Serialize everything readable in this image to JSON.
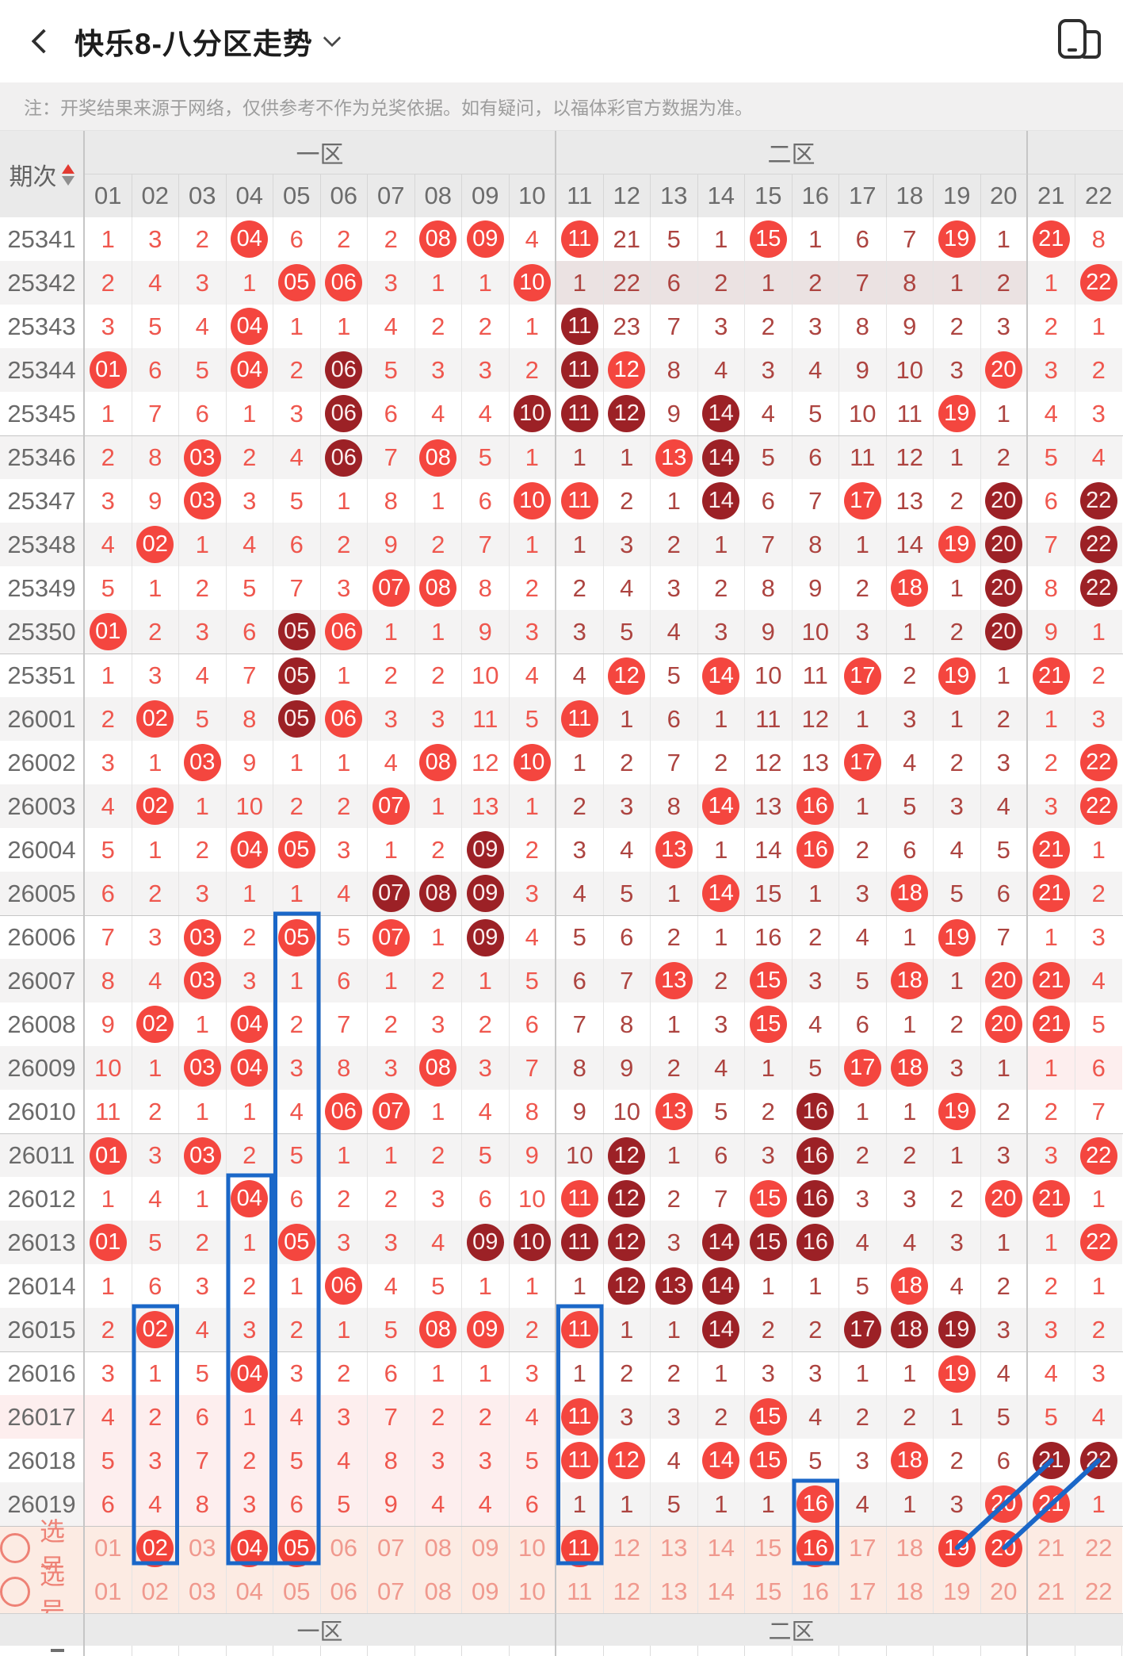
{
  "nav": {
    "title": "快乐8-八分区走势",
    "back_icon": "chevron-left-icon",
    "title_dropdown_icon": "chevron-down-icon",
    "window_switch_icon": "overlapping-windows-icon"
  },
  "disclaimer": "注：开奖结果来源于网络，仅供参考不作为兑奖依据。如有疑问，以福体彩官方数据为准。",
  "table": {
    "period_header": "期次",
    "sort_icon": "sort-asc-desc-icon",
    "zone_headers": [
      "一区",
      "二区",
      ""
    ],
    "columns": [
      "01",
      "02",
      "03",
      "04",
      "05",
      "06",
      "07",
      "08",
      "09",
      "10",
      "11",
      "12",
      "13",
      "14",
      "15",
      "16",
      "17",
      "18",
      "19",
      "20",
      "21",
      "22"
    ],
    "cell_legend": {
      "R": "hit-ball-bright-red",
      "D": "repeat-hit-ball-dark-maroon",
      "S": "selected-pick-ball",
      "plain": "omission-count"
    },
    "rows": [
      {
        "period": "25341",
        "cells": [
          "1",
          "3",
          "2",
          "R04",
          "6",
          "2",
          "2",
          "R08",
          "R09",
          "4",
          "R11",
          "21",
          "5",
          "1",
          "R15",
          "1",
          "6",
          "7",
          "R19",
          "1",
          "R21",
          "8"
        ]
      },
      {
        "period": "25342",
        "cells": [
          "2",
          "4",
          "3",
          "1",
          "R05",
          "R06",
          "3",
          "1",
          "1",
          "R10",
          "1",
          "22",
          "6",
          "2",
          "1",
          "2",
          "7",
          "8",
          "1",
          "2",
          "1",
          "R22"
        ],
        "tints": [
          {
            "from": 11,
            "to": 20,
            "type": "mauve"
          }
        ]
      },
      {
        "period": "25343",
        "cells": [
          "3",
          "5",
          "4",
          "R04",
          "1",
          "1",
          "4",
          "2",
          "2",
          "1",
          "D11",
          "23",
          "7",
          "3",
          "2",
          "3",
          "8",
          "9",
          "2",
          "3",
          "2",
          "1"
        ]
      },
      {
        "period": "25344",
        "cells": [
          "R01",
          "6",
          "5",
          "R04",
          "2",
          "D06",
          "5",
          "3",
          "3",
          "2",
          "D11",
          "R12",
          "8",
          "4",
          "3",
          "4",
          "9",
          "10",
          "3",
          "R20",
          "3",
          "2"
        ]
      },
      {
        "period": "25345",
        "cells": [
          "1",
          "7",
          "6",
          "1",
          "3",
          "D06",
          "6",
          "4",
          "4",
          "D10",
          "D11",
          "D12",
          "9",
          "D14",
          "4",
          "5",
          "10",
          "11",
          "R19",
          "1",
          "4",
          "3"
        ]
      },
      {
        "period": "25346",
        "cells": [
          "2",
          "8",
          "R03",
          "2",
          "4",
          "D06",
          "7",
          "R08",
          "5",
          "1",
          "1",
          "1",
          "R13",
          "D14",
          "5",
          "6",
          "11",
          "12",
          "1",
          "2",
          "5",
          "4"
        ],
        "sep": true
      },
      {
        "period": "25347",
        "cells": [
          "3",
          "9",
          "R03",
          "3",
          "5",
          "1",
          "8",
          "1",
          "6",
          "R10",
          "R11",
          "2",
          "1",
          "D14",
          "6",
          "7",
          "R17",
          "13",
          "2",
          "D20",
          "6",
          "D22"
        ]
      },
      {
        "period": "25348",
        "cells": [
          "4",
          "R02",
          "1",
          "4",
          "6",
          "2",
          "9",
          "2",
          "7",
          "1",
          "1",
          "3",
          "2",
          "1",
          "7",
          "8",
          "1",
          "14",
          "R19",
          "D20",
          "7",
          "D22"
        ]
      },
      {
        "period": "25349",
        "cells": [
          "5",
          "1",
          "2",
          "5",
          "7",
          "3",
          "R07",
          "R08",
          "8",
          "2",
          "2",
          "4",
          "3",
          "2",
          "8",
          "9",
          "2",
          "R18",
          "1",
          "D20",
          "8",
          "D22"
        ]
      },
      {
        "period": "25350",
        "cells": [
          "R01",
          "2",
          "3",
          "6",
          "D05",
          "R06",
          "1",
          "1",
          "9",
          "3",
          "3",
          "5",
          "4",
          "3",
          "9",
          "10",
          "3",
          "1",
          "2",
          "D20",
          "9",
          "1"
        ]
      },
      {
        "period": "25351",
        "cells": [
          "1",
          "3",
          "4",
          "7",
          "D05",
          "1",
          "2",
          "2",
          "10",
          "4",
          "4",
          "R12",
          "5",
          "R14",
          "10",
          "11",
          "R17",
          "2",
          "R19",
          "1",
          "R21",
          "2"
        ],
        "sep": true
      },
      {
        "period": "26001",
        "cells": [
          "2",
          "R02",
          "5",
          "8",
          "D05",
          "R06",
          "3",
          "3",
          "11",
          "5",
          "R11",
          "1",
          "6",
          "1",
          "11",
          "12",
          "1",
          "3",
          "1",
          "2",
          "1",
          "3"
        ]
      },
      {
        "period": "26002",
        "cells": [
          "3",
          "1",
          "R03",
          "9",
          "1",
          "1",
          "4",
          "R08",
          "12",
          "R10",
          "1",
          "2",
          "7",
          "2",
          "12",
          "13",
          "R17",
          "4",
          "2",
          "3",
          "2",
          "R22"
        ]
      },
      {
        "period": "26003",
        "cells": [
          "4",
          "R02",
          "1",
          "10",
          "2",
          "2",
          "R07",
          "1",
          "13",
          "1",
          "2",
          "3",
          "8",
          "R14",
          "13",
          "R16",
          "1",
          "5",
          "3",
          "4",
          "3",
          "R22"
        ]
      },
      {
        "period": "26004",
        "cells": [
          "5",
          "1",
          "2",
          "R04",
          "R05",
          "3",
          "1",
          "2",
          "D09",
          "2",
          "3",
          "4",
          "R13",
          "1",
          "14",
          "R16",
          "2",
          "6",
          "4",
          "5",
          "R21",
          "1"
        ]
      },
      {
        "period": "26005",
        "cells": [
          "6",
          "2",
          "3",
          "1",
          "1",
          "4",
          "D07",
          "D08",
          "D09",
          "3",
          "4",
          "5",
          "1",
          "R14",
          "15",
          "1",
          "3",
          "R18",
          "5",
          "6",
          "R21",
          "2"
        ]
      },
      {
        "period": "26006",
        "cells": [
          "7",
          "3",
          "R03",
          "2",
          "R05",
          "5",
          "R07",
          "1",
          "D09",
          "4",
          "5",
          "6",
          "2",
          "1",
          "16",
          "2",
          "4",
          "1",
          "R19",
          "7",
          "1",
          "3"
        ],
        "sep": true
      },
      {
        "period": "26007",
        "cells": [
          "8",
          "4",
          "R03",
          "3",
          "1",
          "6",
          "1",
          "2",
          "1",
          "5",
          "6",
          "7",
          "R13",
          "2",
          "R15",
          "3",
          "5",
          "R18",
          "1",
          "R20",
          "R21",
          "4"
        ]
      },
      {
        "period": "26008",
        "cells": [
          "9",
          "R02",
          "1",
          "R04",
          "2",
          "7",
          "2",
          "3",
          "2",
          "6",
          "7",
          "8",
          "1",
          "3",
          "R15",
          "4",
          "6",
          "1",
          "2",
          "R20",
          "R21",
          "5"
        ]
      },
      {
        "period": "26009",
        "cells": [
          "10",
          "1",
          "R03",
          "R04",
          "3",
          "8",
          "3",
          "R08",
          "3",
          "7",
          "8",
          "9",
          "2",
          "4",
          "1",
          "5",
          "R17",
          "R18",
          "3",
          "1",
          "1",
          "6"
        ],
        "tints": [
          {
            "from": 21,
            "to": 22,
            "type": "pink"
          }
        ]
      },
      {
        "period": "26010",
        "cells": [
          "11",
          "2",
          "1",
          "1",
          "4",
          "R06",
          "R07",
          "1",
          "4",
          "8",
          "9",
          "10",
          "R13",
          "5",
          "2",
          "D16",
          "1",
          "1",
          "R19",
          "2",
          "2",
          "7"
        ]
      },
      {
        "period": "26011",
        "cells": [
          "R01",
          "3",
          "R03",
          "2",
          "5",
          "1",
          "1",
          "2",
          "5",
          "9",
          "10",
          "D12",
          "1",
          "6",
          "3",
          "D16",
          "2",
          "2",
          "1",
          "3",
          "3",
          "R22"
        ],
        "sep": true
      },
      {
        "period": "26012",
        "cells": [
          "1",
          "4",
          "1",
          "R04",
          "6",
          "2",
          "2",
          "3",
          "6",
          "10",
          "R11",
          "D12",
          "2",
          "7",
          "R15",
          "D16",
          "3",
          "3",
          "2",
          "R20",
          "R21",
          "1"
        ]
      },
      {
        "period": "26013",
        "cells": [
          "R01",
          "5",
          "2",
          "1",
          "R05",
          "3",
          "3",
          "4",
          "D09",
          "D10",
          "D11",
          "D12",
          "3",
          "D14",
          "D15",
          "D16",
          "4",
          "4",
          "3",
          "1",
          "1",
          "R22"
        ]
      },
      {
        "period": "26014",
        "cells": [
          "1",
          "6",
          "3",
          "2",
          "1",
          "R06",
          "4",
          "5",
          "1",
          "1",
          "1",
          "D12",
          "D13",
          "D14",
          "1",
          "1",
          "5",
          "R18",
          "4",
          "2",
          "2",
          "1"
        ]
      },
      {
        "period": "26015",
        "cells": [
          "2",
          "R02",
          "4",
          "3",
          "2",
          "1",
          "5",
          "R08",
          "R09",
          "2",
          "R11",
          "1",
          "1",
          "D14",
          "2",
          "2",
          "D17",
          "D18",
          "D19",
          "3",
          "3",
          "2"
        ]
      },
      {
        "period": "26016",
        "cells": [
          "3",
          "1",
          "5",
          "R04",
          "3",
          "2",
          "6",
          "1",
          "1",
          "3",
          "1",
          "2",
          "2",
          "1",
          "3",
          "3",
          "1",
          "1",
          "R19",
          "4",
          "4",
          "3"
        ],
        "sep": true
      },
      {
        "period": "26017",
        "cells": [
          "4",
          "2",
          "6",
          "1",
          "4",
          "3",
          "7",
          "2",
          "2",
          "4",
          "R11",
          "3",
          "3",
          "2",
          "R15",
          "4",
          "2",
          "2",
          "1",
          "5",
          "5",
          "4"
        ],
        "tints": [
          {
            "from": 0,
            "to": 10,
            "type": "pink"
          }
        ]
      },
      {
        "period": "26018",
        "cells": [
          "5",
          "3",
          "7",
          "2",
          "5",
          "4",
          "8",
          "3",
          "3",
          "5",
          "R11",
          "R12",
          "4",
          "R14",
          "R15",
          "5",
          "3",
          "R18",
          "2",
          "6",
          "D21",
          "D22"
        ],
        "tints": [
          {
            "from": 1,
            "to": 10,
            "type": "pink"
          }
        ]
      },
      {
        "period": "26019",
        "cells": [
          "6",
          "4",
          "8",
          "3",
          "6",
          "5",
          "9",
          "4",
          "4",
          "6",
          "1",
          "1",
          "5",
          "1",
          "1",
          "R16",
          "4",
          "1",
          "3",
          "R20",
          "R21",
          "1"
        ],
        "tints": [
          {
            "from": 1,
            "to": 10,
            "type": "pink"
          }
        ]
      }
    ],
    "select_rows": [
      {
        "id": "select-1",
        "label": "选号",
        "cells": [
          "01",
          "S02",
          "03",
          "S04",
          "S05",
          "06",
          "07",
          "08",
          "09",
          "10",
          "S11",
          "12",
          "13",
          "14",
          "15",
          "S16",
          "17",
          "18",
          "S19",
          "S20",
          "21",
          "22"
        ]
      },
      {
        "id": "select-2",
        "label": "选号",
        "cells": [
          "01",
          "02",
          "03",
          "04",
          "05",
          "06",
          "07",
          "08",
          "09",
          "10",
          "11",
          "12",
          "13",
          "14",
          "15",
          "16",
          "17",
          "18",
          "19",
          "20",
          "21",
          "22"
        ]
      }
    ],
    "footer_zones": [
      "一区",
      "二区",
      ""
    ]
  },
  "annotations": {
    "highlight_color": "#1a67c8",
    "column_boxes": [
      {
        "col": 2,
        "from_period": "26015",
        "to_row": "select-1"
      },
      {
        "col": 4,
        "from_period": "26012",
        "to_row": "select-1"
      },
      {
        "col": 5,
        "from_period": "26006",
        "to_row": "select-1"
      },
      {
        "col": 11,
        "from_period": "26015",
        "to_row": "select-1"
      },
      {
        "col": 16,
        "from_period": "26019",
        "to_row": "select-1"
      }
    ],
    "trend_lines": [
      {
        "from_row": "select-1",
        "from_col": 19,
        "to_period": "26018",
        "to_col": 21
      },
      {
        "from_row": "select-1",
        "from_col": 20,
        "to_period": "26018",
        "to_col": 22
      }
    ]
  },
  "colors": {
    "zone1_text": "#ef574e",
    "zone2_text": "#ad4440",
    "hit_ball": "#f4463f",
    "repeat_hit_ball": "#9c2126",
    "row_alt": "#f4f3f3",
    "tint_pink": "#fdeeee",
    "tint_mauve": "#ebe2e2",
    "select_row_bg": "#fcebe3",
    "select_text": "#f0998e",
    "select_label": "#ee8276",
    "selected_ball": "#f3423a",
    "header_bg": "#eaeaea",
    "highlight_blue": "#1a67c8"
  }
}
